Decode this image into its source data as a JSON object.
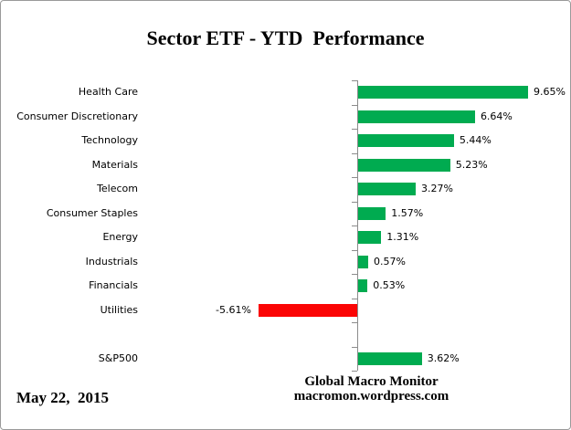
{
  "chart_data": {
    "type": "bar",
    "orientation": "horizontal",
    "title": "Sector ETF - YTD  Performance",
    "categories": [
      "Health Care",
      "Consumer Discretionary",
      "Technology",
      "Materials",
      "Telecom",
      "Consumer Staples",
      "Energy",
      "Industrials",
      "Financials",
      "Utilities",
      "S&P500"
    ],
    "values": [
      9.65,
      6.64,
      5.44,
      5.23,
      3.27,
      1.57,
      1.31,
      0.57,
      0.53,
      -5.61,
      3.62
    ],
    "value_labels": [
      "9.65%",
      "6.64%",
      "5.44%",
      "5.23%",
      "3.27%",
      "1.57%",
      "1.31%",
      "0.57%",
      "0.53%",
      "-5.61%",
      "3.62%"
    ],
    "gap_before": "S&P500",
    "positive_color": "#00AB50",
    "negative_color": "#FB0505",
    "axis_color": "#8C8C8C",
    "grid": false,
    "legend": false,
    "xlabel": "",
    "ylabel": ""
  },
  "footer": {
    "date": "May 22,  2015",
    "credit_line1": "Global Macro Monitor",
    "credit_line2": "macromon.wordpress.com"
  }
}
